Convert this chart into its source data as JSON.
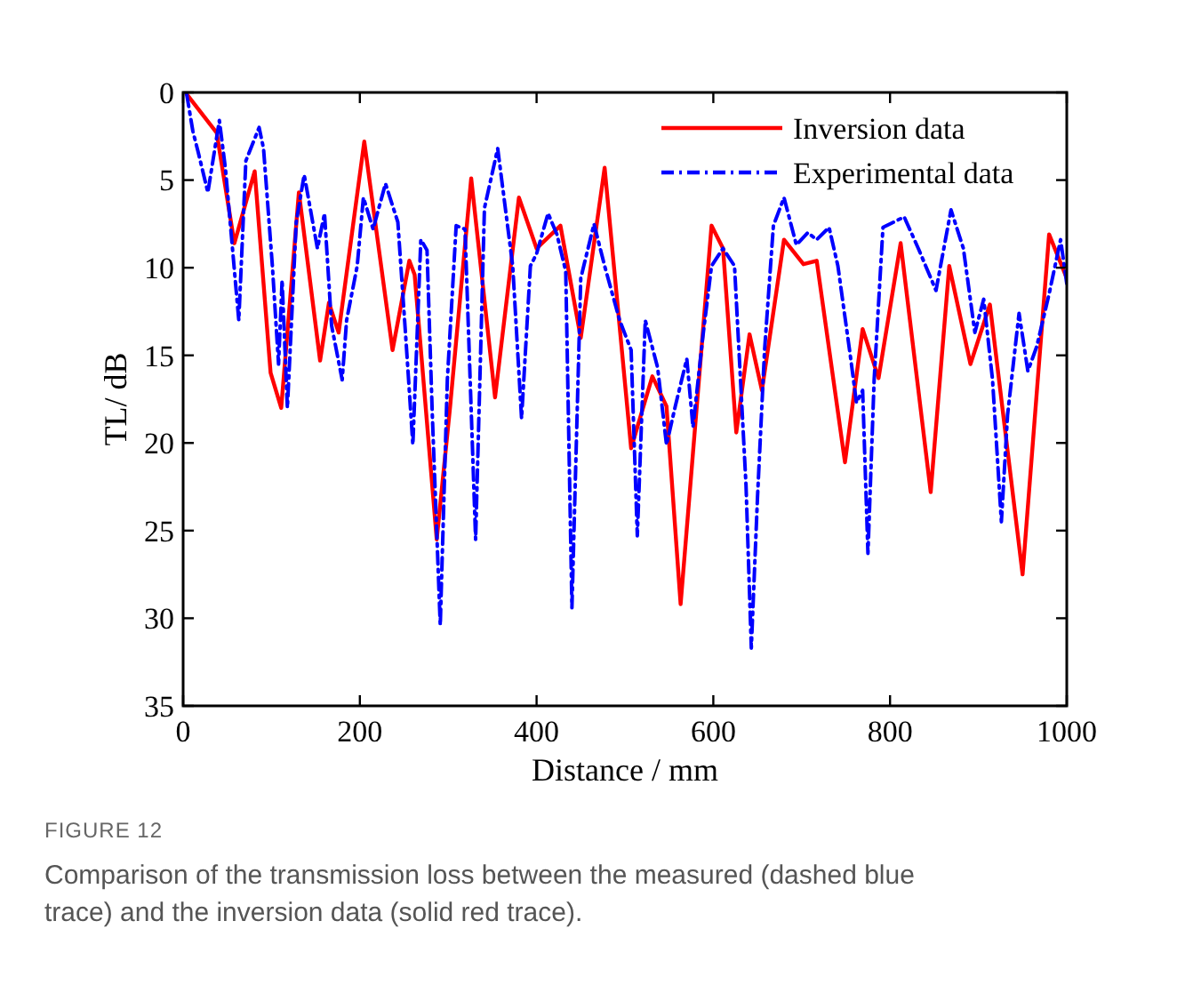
{
  "chart_data": {
    "type": "line",
    "xlabel": "Distance / mm",
    "ylabel": "TL/ dB",
    "xlim": [
      0,
      1000
    ],
    "ylim": [
      35,
      0
    ],
    "xticks": [
      0,
      200,
      400,
      600,
      800,
      1000
    ],
    "yticks": [
      0,
      5,
      10,
      15,
      20,
      25,
      30,
      35
    ],
    "grid": false,
    "legend": "top right",
    "annotations": [
      "FIGURE 12",
      "Comparison of the transmission loss between the measured (dashed blue trace) and the inversion data (solid red trace)."
    ],
    "series": [
      {
        "name": "Inversion data",
        "color": "#ff0000",
        "line_style": "solid",
        "x": [
          4,
          38,
          58,
          81,
          99,
          111,
          131,
          155,
          165,
          176,
          205,
          237,
          256,
          262,
          287,
          302,
          326,
          353,
          380,
          400,
          427,
          450,
          477,
          507,
          531,
          547,
          563,
          598,
          611,
          626,
          641,
          655,
          680,
          702,
          717,
          749,
          769,
          787,
          812,
          846,
          867,
          891,
          913,
          950,
          980,
          1000
        ],
        "values": [
          0.1,
          2.3,
          8.6,
          4.5,
          16,
          18,
          5.7,
          15.3,
          12,
          13.7,
          2.8,
          14.7,
          9.6,
          10.4,
          25.5,
          18,
          4.9,
          17.4,
          6,
          8.9,
          7.6,
          14,
          4.3,
          20.3,
          16.2,
          17.9,
          29.2,
          7.6,
          8.9,
          19.4,
          13.8,
          17,
          8.4,
          9.8,
          9.6,
          21.1,
          13.5,
          16.3,
          8.6,
          22.8,
          9.9,
          15.5,
          12.1,
          27.5,
          8.1,
          10.6
        ]
      },
      {
        "name": "Experimental data",
        "color": "#0000ff",
        "line_style": "dashed",
        "x": [
          4,
          11,
          17,
          28,
          41,
          48,
          63,
          71,
          86,
          91,
          101,
          108,
          112,
          118,
          128,
          137,
          152,
          160,
          168,
          180,
          185,
          197,
          204,
          215,
          229,
          243,
          252,
          260,
          269,
          276,
          282,
          291,
          299,
          309,
          319,
          331,
          341,
          356,
          373,
          383,
          393,
          400,
          413,
          423,
          433,
          440,
          450,
          465,
          477,
          494,
          507,
          514,
          523,
          537,
          547,
          557,
          570,
          577,
          588,
          598,
          611,
          624,
          637,
          643,
          650,
          658,
          668,
          680,
          694,
          707,
          717,
          731,
          741,
          755,
          762,
          769,
          775,
          782,
          792,
          816,
          832,
          852,
          869,
          883,
          896,
          906,
          916,
          926,
          933,
          946,
          956,
          966,
          980,
          993,
          1000
        ],
        "values": [
          0.1,
          2.2,
          3.4,
          5.7,
          1.6,
          4.4,
          13,
          3.9,
          2,
          3.2,
          9.9,
          15.5,
          10.7,
          18,
          7.4,
          4.7,
          8.9,
          6.9,
          13.3,
          16.4,
          13,
          9.9,
          6,
          7.8,
          5.2,
          7.4,
          14,
          20.1,
          8.4,
          9,
          18.4,
          30.4,
          16.4,
          7.6,
          7.8,
          25.5,
          6.6,
          3.2,
          9.9,
          18.6,
          9.9,
          9.2,
          6.9,
          8.1,
          10.2,
          29.4,
          10.6,
          7.5,
          9.9,
          13,
          14.7,
          25.3,
          13,
          15.7,
          20.1,
          17.9,
          15.2,
          19.1,
          14,
          9.9,
          8.9,
          9.9,
          22.4,
          31.7,
          23.1,
          14.7,
          7.6,
          6,
          8.7,
          8,
          8.4,
          7.7,
          9.9,
          15,
          17.7,
          17,
          26.3,
          16.4,
          7.7,
          7.1,
          8.9,
          11.3,
          6.7,
          8.9,
          13.7,
          11.8,
          16.4,
          24.5,
          18.4,
          12.6,
          15.9,
          14.5,
          11.5,
          8.4,
          10.9
        ]
      }
    ]
  }
}
